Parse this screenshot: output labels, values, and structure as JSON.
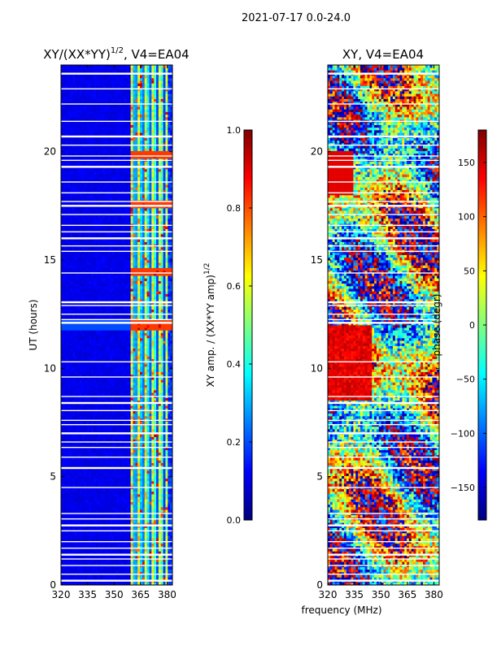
{
  "figure": {
    "suptitle": "2021-07-17 0.0-24.0",
    "xlabel": "frequency (MHz)"
  },
  "colormap": {
    "name": "jet",
    "stops": [
      "#00007f",
      "#0000ff",
      "#007fff",
      "#00ffff",
      "#7fff7f",
      "#ffff00",
      "#ff7f00",
      "#ff0000",
      "#7f0000"
    ]
  },
  "chart_data": [
    {
      "type": "heatmap",
      "title": "XY/(XX*YY)",
      "title_exponent": "1/2",
      "title_suffix": ", V4=EA04",
      "xlabel": "",
      "ylabel": "UT (hours)",
      "xlim": [
        320,
        383
      ],
      "ylim": [
        0,
        24
      ],
      "xticks": [
        "320",
        "335",
        "350",
        "365",
        "380"
      ],
      "yticks": [
        "0",
        "5",
        "10",
        "15",
        "20"
      ],
      "pattern": "amplitude",
      "colorbar": {
        "label": "XY amp. / (XX*YY amp)",
        "label_exponent": "1/2",
        "vmin": 0.0,
        "vmax": 1.0,
        "ticks": [
          "0.0",
          "0.2",
          "0.4",
          "0.6",
          "0.8",
          "1.0"
        ]
      },
      "flagged_hours": [
        0.2,
        0.5,
        0.9,
        1.2,
        1.4,
        1.7,
        2.0,
        2.5,
        2.75,
        3.05,
        3.3,
        4.5,
        5.4,
        5.9,
        6.35,
        6.6,
        7.0,
        7.4,
        7.6,
        8.05,
        8.4,
        8.7,
        9.6,
        10.3,
        12.1,
        12.25,
        12.5,
        12.9,
        13.05,
        14.4,
        15.4,
        15.65,
        16.0,
        16.3,
        16.6,
        17.1,
        17.5,
        17.7,
        18.1,
        18.6,
        19.3,
        19.6,
        19.8,
        20.3,
        20.7,
        21.4,
        22.2,
        22.9,
        23.6
      ],
      "bright_rows_hours": [
        12.0,
        14.5,
        17.6,
        19.9
      ],
      "active_band_mhz": [
        359,
        381
      ]
    },
    {
      "type": "heatmap",
      "title": "XY, V4=EA04",
      "xlabel": "",
      "ylabel": "",
      "xlim": [
        320,
        383
      ],
      "ylim": [
        0,
        24
      ],
      "xticks": [
        "320",
        "335",
        "350",
        "365",
        "380"
      ],
      "yticks": [
        "0",
        "5",
        "10",
        "15",
        "20"
      ],
      "pattern": "phase",
      "colorbar": {
        "label": "phase (degr)",
        "vmin": -180,
        "vmax": 180,
        "ticks": [
          "−150",
          "−100",
          "−50",
          "0",
          "50",
          "100",
          "150"
        ],
        "tick_values": [
          -150,
          -100,
          -50,
          0,
          50,
          100,
          150
        ]
      },
      "flagged_hours": [
        0.2,
        0.5,
        0.9,
        1.2,
        1.4,
        1.7,
        2.0,
        2.5,
        2.75,
        3.05,
        3.3,
        4.5,
        5.4,
        5.9,
        6.35,
        6.6,
        7.0,
        7.4,
        7.6,
        8.05,
        8.4,
        8.7,
        9.6,
        10.3,
        12.1,
        12.25,
        12.5,
        12.9,
        13.05,
        14.4,
        15.4,
        15.65,
        16.0,
        16.3,
        16.6,
        17.1,
        17.5,
        17.7,
        18.1,
        18.6,
        19.3,
        19.6,
        19.8,
        20.3,
        20.7,
        21.4,
        22.2,
        22.9,
        23.6
      ]
    }
  ]
}
